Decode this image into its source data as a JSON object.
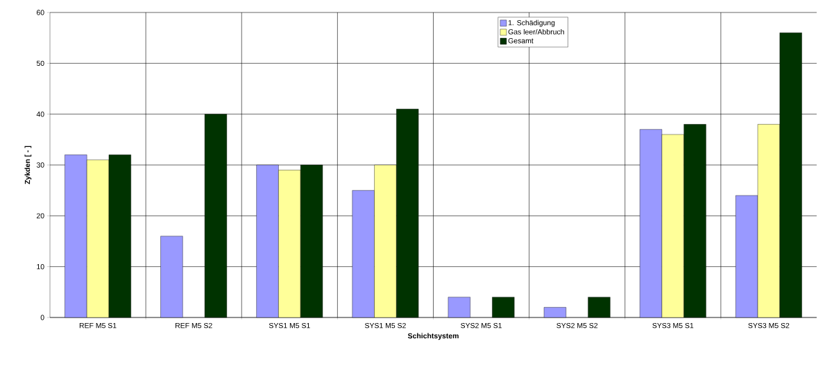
{
  "chart_data": {
    "type": "bar",
    "xlabel": "Schichtsystem",
    "ylabel": "Zykden [ - ]",
    "categories": [
      "REF  M5 S1",
      "REF  M5 S2",
      "SYS1 M5 S1",
      "SYS1 M5 S2",
      "SYS2 M5 S1",
      "SYS2 M5 S2",
      "SYS3 M5 S1",
      "SYS3 M5 S2"
    ],
    "series": [
      {
        "name": "1. Schädigung",
        "color": "#9999ff",
        "values": [
          32,
          16,
          30,
          25,
          4,
          2,
          37,
          24
        ]
      },
      {
        "name": "Gas leer/Abbruch",
        "color": "#ffff99",
        "values": [
          31,
          null,
          29,
          30,
          null,
          null,
          36,
          38
        ]
      },
      {
        "name": "Gesamt",
        "color": "#003300",
        "values": [
          32,
          40,
          30,
          41,
          4,
          4,
          38,
          56
        ]
      }
    ],
    "ylim": [
      0,
      60
    ],
    "yticks": [
      0,
      10,
      20,
      30,
      40,
      50,
      60
    ],
    "grid": true,
    "legend": "top"
  }
}
